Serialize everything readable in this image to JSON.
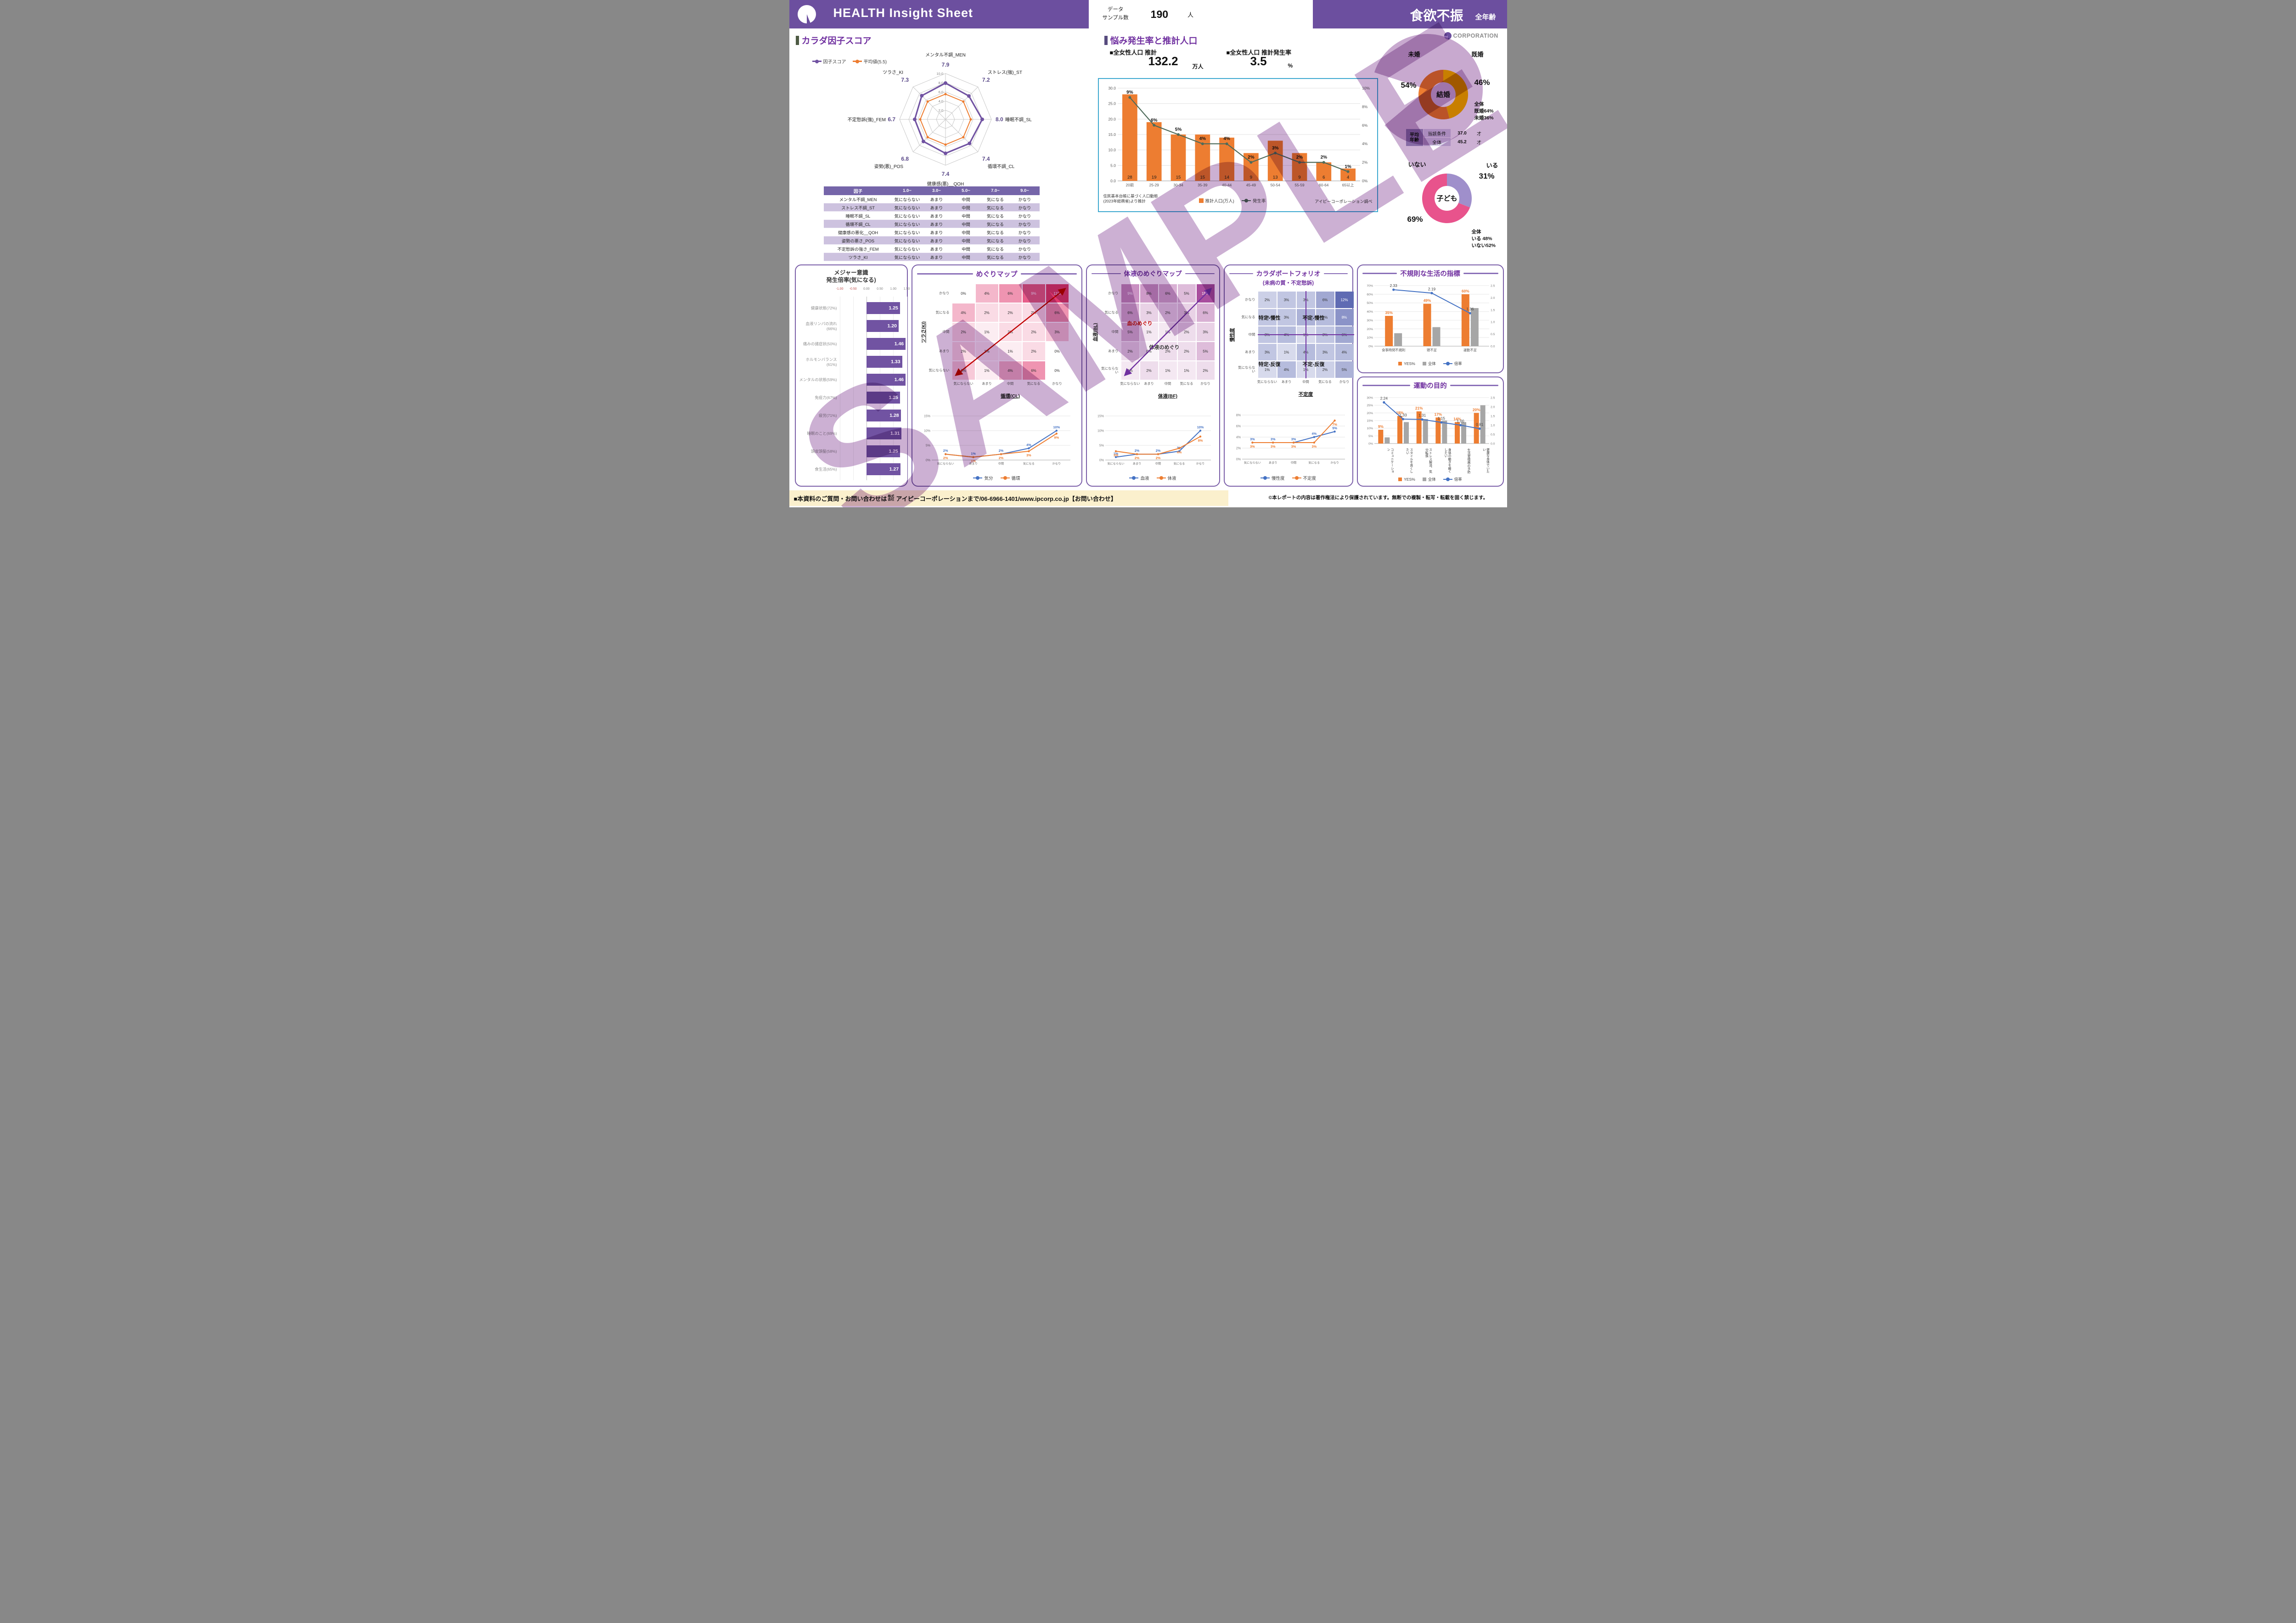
{
  "header": {
    "title": "HEALTH Insight Sheet",
    "sample_label_line1": "データ",
    "sample_label_line2": "サンプル数",
    "sample_count": "190",
    "sample_unit": "人",
    "topic": "食欲不振",
    "age_scope": "全年齢"
  },
  "corp_logo_text": "CORPORATION",
  "radar_section": {
    "title": "カラダ因子スコア",
    "legend_score": "因子スコア",
    "legend_average": "平均値(5.5)"
  },
  "factor_table": {
    "headers": [
      "因子",
      "1.0~",
      "3.0~",
      "5.0~",
      "7.0~",
      "9.0~"
    ],
    "rows": [
      [
        "メンタル不調_MEN",
        "気にならない",
        "あまり",
        "中間",
        "気になる",
        "かなり"
      ],
      [
        "ストレス不調_ST",
        "気にならない",
        "あまり",
        "中間",
        "気になる",
        "かなり"
      ],
      [
        "睡眠不調_SL",
        "気にならない",
        "あまり",
        "中間",
        "気になる",
        "かなり"
      ],
      [
        "循環不調_CL",
        "気にならない",
        "あまり",
        "中間",
        "気になる",
        "かなり"
      ],
      [
        "健康感の悪化__QOH",
        "気にならない",
        "あまり",
        "中間",
        "気になる",
        "かなり"
      ],
      [
        "姿勢の悪さ_POS",
        "気にならない",
        "あまり",
        "中間",
        "気になる",
        "かなり"
      ],
      [
        "不定愁訴の強さ_FEM",
        "気にならない",
        "あまり",
        "中間",
        "気になる",
        "かなり"
      ],
      [
        "ツラさ_KI",
        "気にならない",
        "あまり",
        "中間",
        "気になる",
        "かなり"
      ]
    ]
  },
  "population_section": {
    "title": "悩み発生率と推計人口",
    "stat1_label": "■全女性人口 推計",
    "stat1_value": "132.2",
    "stat1_unit": "万人",
    "stat2_label": "■全女性人口 推計発生率",
    "stat2_value": "3.5",
    "stat2_unit": "%",
    "note_line1": "住民基本台帳に基づく人口動態",
    "note_line2": "(2023年総務省)より推計",
    "legend_bar": "推計人口(万人)",
    "legend_line": "発生率",
    "source": "アイピーコーポレーション調べ"
  },
  "marriage_section": {
    "label_left": "未婚",
    "pct_left": "54%",
    "label_right": "既婚",
    "pct_right": "46%",
    "center": "結婚",
    "note": [
      "全体",
      "既婚64%",
      "未婚36%"
    ],
    "age_table": {
      "label_line1": "平均",
      "label_line2": "年齢",
      "row1_key": "当該条件",
      "row1_value": "37.0",
      "row1_unit": "才",
      "row2_key": "全体",
      "row2_value": "45.2",
      "row2_unit": "才"
    }
  },
  "children_section": {
    "label_left": "いない",
    "pct_left": "69%",
    "label_right": "いる",
    "pct_right": "31%",
    "center": "子ども",
    "note": [
      "全体",
      "いる 48%",
      "いない52%"
    ]
  },
  "major_section": {
    "title_line1": "メジャー意識",
    "title_line2": "発生倍率(気になる)"
  },
  "meguri_section": {
    "title": "めぐりマップ",
    "legend": [
      "気分",
      "循環"
    ]
  },
  "taieki_section": {
    "title": "体液のめぐりマップ",
    "annotation_red": "血のめぐり",
    "annotation_dark": "体液のめぐり",
    "legend": [
      "血液",
      "体液"
    ]
  },
  "portfolio_section": {
    "title": "カラダポートフォリオ",
    "subtitle": "(未病の質・不定愁訴)",
    "quad_tl": "特定-慢性",
    "quad_tr": "不定-慢性",
    "quad_bl": "特定-反復",
    "quad_br": "不定-反復",
    "legend": [
      "慢性度",
      "不定度"
    ]
  },
  "irregular_section": {
    "title": "不規則な生活の指標",
    "legend": [
      "YES%",
      "全体",
      "倍率"
    ]
  },
  "exercise_section": {
    "title": "運動の目的",
    "legend": [
      "YES%",
      "全体",
      "倍率"
    ]
  },
  "footer": {
    "left_pre": "■本資料のご質問・お問い合わせは",
    "left_company_small": "株式会社",
    "left_rest": "アイピーコーポレーションまで/06-6966-1401/www.ipcorp.co.jp【お問い合わせ】",
    "copyright": "©本レポートの内容は著作権法により保護されています。無断での複製・転写・転載を固く禁じます。"
  },
  "watermark": {
    "text": "SAMPLE"
  },
  "colors": {
    "accent_purple": "#6C4F9F",
    "bar_purple": "#7153A2",
    "orange": "#ED7D31",
    "yellow": "#FFC000",
    "pink": "#E8538C",
    "light_purple": "#9F8FCB",
    "blue": "#4472C4",
    "gray": "#A6A6A6",
    "line_green": "#4E6B5A",
    "red": "#C00000",
    "box_border_blue": "#3FA9D0"
  },
  "chart_data": [
    {
      "type": "radar",
      "title": "カラダ因子スコア",
      "max": 10,
      "axes": [
        "メンタル不調_MEN",
        "ストレス(強)_ST",
        "睡眠不調_SL",
        "循環不調_CL",
        "健康感(悪)__QOH",
        "姿勢(悪)_POS",
        "不定愁訴(強)_FEM",
        "ツラさ_KI"
      ],
      "values": [
        7.9,
        7.2,
        8.0,
        7.4,
        7.4,
        6.8,
        6.7,
        7.3
      ],
      "average": 5.5,
      "rings": [
        2,
        4,
        6,
        8,
        10
      ],
      "ring_labels": [
        "2.0",
        "4.0",
        "6.0",
        "8.0",
        "10.0"
      ]
    },
    {
      "type": "bar",
      "subtype": "bar+line",
      "title": "悩み発生率と推計人口",
      "categories": [
        "20前",
        "25-29",
        "30-34",
        "35-39",
        "40-44",
        "45-49",
        "50-54",
        "55-59",
        "60-64",
        "65以上"
      ],
      "bar_series": "推計人口(万人)",
      "bar_values": [
        28,
        19,
        15,
        15,
        14,
        9,
        13,
        9,
        6,
        4
      ],
      "line_series": "発生率",
      "line_values_pct": [
        9,
        6,
        5,
        4,
        4,
        2,
        3,
        2,
        2,
        1
      ],
      "left_axis": {
        "min": 0,
        "max": 30,
        "ticks": [
          "0.0",
          "5.0",
          "10.0",
          "15.0",
          "20.0",
          "25.0",
          "30.0"
        ]
      },
      "right_axis": {
        "min": 0,
        "max": 10,
        "ticks": [
          "0%",
          "2%",
          "4%",
          "6%",
          "8%",
          "10%"
        ]
      }
    },
    {
      "type": "pie",
      "title": "結婚",
      "center_label": "結婚",
      "slices": [
        {
          "label": "既婚",
          "value": 46
        },
        {
          "label": "未婚",
          "value": 54
        }
      ]
    },
    {
      "type": "pie",
      "title": "子ども",
      "center_label": "子ども",
      "slices": [
        {
          "label": "いる",
          "value": 31
        },
        {
          "label": "いない",
          "value": 69
        }
      ]
    },
    {
      "type": "bar",
      "orientation": "horizontal",
      "title": "メジャー意識 発生倍率(気になる)",
      "xmin": -1.0,
      "xmax": 1.5,
      "axis_ticks": [
        "-1.00",
        "-0.50",
        "0.00",
        "0.50",
        "1.00",
        "1.50"
      ],
      "items": [
        {
          "label": "健康状態(72%)",
          "value": 1.25
        },
        {
          "label": "血液リンパの流れ(66%)",
          "value": 1.2
        },
        {
          "label": "痛みの諸症状(50%)",
          "value": 1.46
        },
        {
          "label": "ホルモンバランス(61%)",
          "value": 1.33
        },
        {
          "label": "メンタルの状態(59%)",
          "value": 1.46
        },
        {
          "label": "免疫力(67%)",
          "value": 1.25
        },
        {
          "label": "疲労(71%)",
          "value": 1.28
        },
        {
          "label": "睡眠のこと(69%)",
          "value": 1.31
        },
        {
          "label": "頭皮頭髪(58%)",
          "value": 1.25
        },
        {
          "label": "食生活(65%)",
          "value": 1.27
        }
      ]
    },
    {
      "type": "heatmap",
      "title": "めぐりマップ",
      "x_axis": "循環(CL)",
      "y_axis": "ツラさ(KI)",
      "max": 11,
      "row_labels": [
        "かなり",
        "気になる",
        "中間",
        "あまり",
        "気にならない"
      ],
      "col_labels": [
        "気にならない",
        "あまり",
        "中間",
        "気になる",
        "かなり"
      ],
      "cells_pct": [
        [
          0,
          4,
          6,
          9,
          11
        ],
        [
          4,
          2,
          2,
          2,
          6
        ],
        [
          2,
          1,
          2,
          2,
          3
        ],
        [
          2,
          1,
          1,
          2,
          0
        ],
        [
          3,
          1,
          4,
          6,
          0
        ]
      ],
      "line_chart": {
        "type": "line",
        "y_max": 15,
        "y_ticks": [
          "0%",
          "5%",
          "10%",
          "15%"
        ],
        "categories": [
          "気にならない",
          "あまり",
          "中間",
          "気になる",
          "かなり"
        ],
        "series": [
          {
            "name": "気分",
            "values": [
              2,
              1,
              2,
              4,
              10
            ]
          },
          {
            "name": "循環",
            "values": [
              2,
              1,
              2,
              3,
              9
            ]
          }
        ]
      }
    },
    {
      "type": "heatmap",
      "title": "体液のめぐりマップ",
      "x_axis": "体液(BF)",
      "y_axis": "血液(BL)",
      "max": 15,
      "row_labels": [
        "かなり",
        "気になる",
        "中間",
        "あまり",
        "気にならない"
      ],
      "col_labels": [
        "気にならない",
        "あまり",
        "中間",
        "気になる",
        "かなり"
      ],
      "cells_pct": [
        [
          9,
          8,
          6,
          5,
          15
        ],
        [
          6,
          3,
          2,
          3,
          6
        ],
        [
          5,
          1,
          1,
          2,
          3
        ],
        [
          2,
          0,
          2,
          2,
          5
        ],
        [
          1,
          2,
          1,
          1,
          2
        ]
      ],
      "line_chart": {
        "type": "line",
        "y_max": 15,
        "y_ticks": [
          "0%",
          "5%",
          "10%",
          "15%"
        ],
        "categories": [
          "気にならない",
          "あまり",
          "中間",
          "気になる",
          "かなり"
        ],
        "series": [
          {
            "name": "血液",
            "values": [
              1,
              2,
              2,
              3,
              10
            ]
          },
          {
            "name": "体液",
            "values": [
              3,
              2,
              2,
              4,
              8
            ]
          }
        ]
      }
    },
    {
      "type": "heatmap",
      "title": "カラダポートフォリオ",
      "x_axis": "不定度",
      "y_axis": "慢性度",
      "max": 12,
      "row_labels": [
        "かなり",
        "気になる",
        "中間",
        "あまり",
        "気にならない"
      ],
      "col_labels": [
        "気にならない",
        "あまり",
        "中間",
        "気になる",
        "かなり"
      ],
      "cells_pct": [
        [
          2,
          3,
          3,
          6,
          12
        ],
        [
          3,
          3,
          5,
          4,
          8
        ],
        [
          3,
          4,
          1,
          3,
          6
        ],
        [
          3,
          1,
          4,
          3,
          4
        ],
        [
          1,
          4,
          1,
          2,
          5
        ]
      ],
      "line_chart": {
        "type": "line",
        "y_max": 8,
        "y_ticks": [
          "0%",
          "2%",
          "4%",
          "6%",
          "8%"
        ],
        "categories": [
          "気にならない",
          "あまり",
          "中間",
          "気になる",
          "かなり"
        ],
        "series": [
          {
            "name": "慢性度",
            "values": [
              3,
              3,
              3,
              4,
              5
            ]
          },
          {
            "name": "不定度",
            "values": [
              3,
              3,
              3,
              3,
              7
            ]
          }
        ]
      }
    },
    {
      "type": "bar",
      "subtype": "combo",
      "title": "不規則な生活の指標",
      "categories": [
        "食事時間不規則",
        "寝不足",
        "運動不足"
      ],
      "series": [
        {
          "name": "YES%",
          "values": [
            35,
            49,
            60
          ]
        },
        {
          "name": "全体",
          "values": [
            15,
            22,
            44
          ]
        }
      ],
      "line": {
        "name": "倍率",
        "values": [
          2.33,
          2.19,
          1.36
        ]
      },
      "left_axis": {
        "min": 0,
        "max": 70,
        "ticks": [
          "0%",
          "10%",
          "20%",
          "30%",
          "40%",
          "50%",
          "60%",
          "70%"
        ]
      },
      "right_axis": {
        "min": 0,
        "max": 2.5,
        "ticks": [
          "0.0",
          "0.5",
          "1.0",
          "1.5",
          "2.0",
          "2.5"
        ]
      }
    },
    {
      "type": "bar",
      "subtype": "combo",
      "title": "運動の目的",
      "categories": [
        "コミュニケーション",
        "スタイルを良くしたい",
        "ストレス解消、気分転換",
        "身体の動きを軽くしたい",
        "生活習慣病の予防",
        "健康な身体でいたい"
      ],
      "series": [
        {
          "name": "YES%",
          "values": [
            9,
            18,
            21,
            17,
            14,
            20
          ]
        },
        {
          "name": "全体",
          "values": [
            4,
            14,
            16,
            15,
            14,
            25
          ]
        }
      ],
      "line": {
        "name": "倍率",
        "values": [
          2.24,
          1.33,
          1.31,
          1.15,
          1.0,
          0.81
        ]
      },
      "left_axis": {
        "min": 0,
        "max": 30,
        "ticks": [
          "0%",
          "5%",
          "10%",
          "15%",
          "20%",
          "25%",
          "30%"
        ]
      },
      "right_axis": {
        "min": 0,
        "max": 2.5,
        "ticks": [
          "0.0",
          "0.5",
          "1.0",
          "1.5",
          "2.0",
          "2.5"
        ]
      }
    }
  ]
}
